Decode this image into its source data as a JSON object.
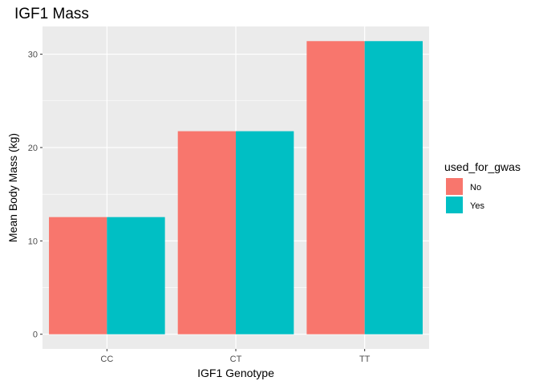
{
  "chart_data": {
    "type": "bar",
    "title": "IGF1 Mass",
    "xlabel": "IGF1 Genotype",
    "ylabel": "Mean Body Mass (kg)",
    "categories": [
      "CC",
      "CT",
      "TT"
    ],
    "series": [
      {
        "name": "No",
        "values": [
          12.55,
          21.75,
          31.4
        ]
      },
      {
        "name": "Yes",
        "values": [
          12.55,
          21.75,
          31.4
        ]
      }
    ],
    "ylim": [
      -1.57,
      32.97
    ],
    "yticks": [
      0,
      10,
      20,
      30
    ],
    "grid": true,
    "legend": {
      "title": "used_for_gwas",
      "position": "right"
    },
    "colors": {
      "No": "#F8766D",
      "Yes": "#00BFC4",
      "panel": "#EBEBEB",
      "grid": "#FFFFFF"
    }
  }
}
